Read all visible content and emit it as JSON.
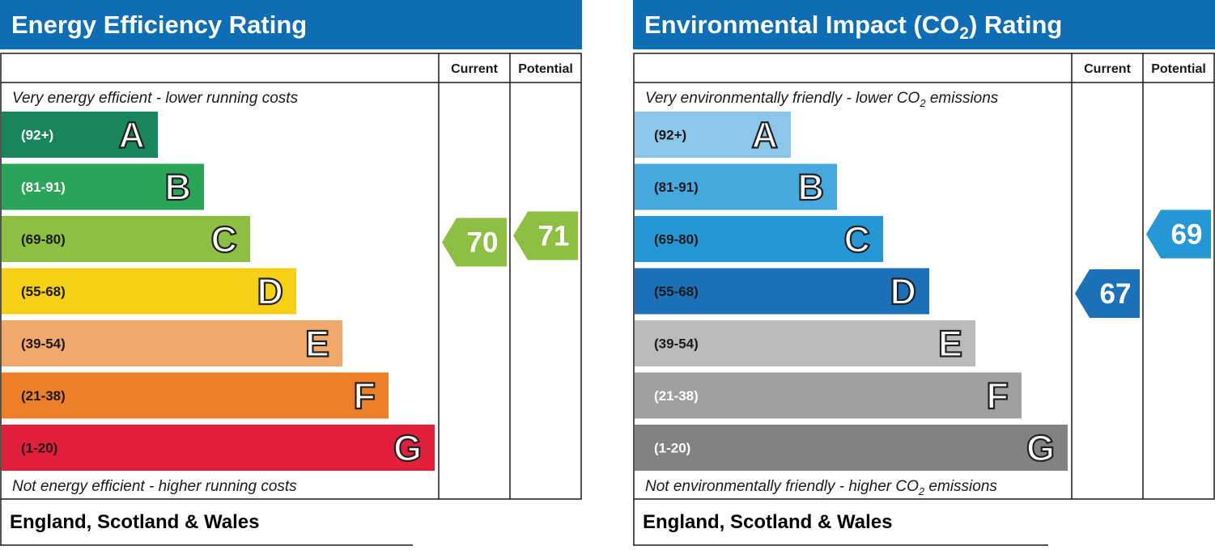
{
  "chart_data": [
    {
      "type": "bar",
      "title": "Energy Efficiency Rating",
      "column_headers": {
        "current": "Current",
        "potential": "Potential"
      },
      "top_note": "Very energy efficient - lower running costs",
      "bottom_note": "Not energy efficient - higher running costs",
      "footer": "England, Scotland & Wales",
      "bands": [
        {
          "letter": "A",
          "range": "(92+)",
          "color": "#17865a",
          "label_color": "#ffffff"
        },
        {
          "letter": "B",
          "range": "(81-91)",
          "color": "#2aa457",
          "label_color": "#ffffff"
        },
        {
          "letter": "C",
          "range": "(69-80)",
          "color": "#8dbf42",
          "label_color": "#1a1a1a"
        },
        {
          "letter": "D",
          "range": "(55-68)",
          "color": "#f6cf17",
          "label_color": "#1a1a1a"
        },
        {
          "letter": "E",
          "range": "(39-54)",
          "color": "#f1a86b",
          "label_color": "#1a1a1a"
        },
        {
          "letter": "F",
          "range": "(21-38)",
          "color": "#ec7f27",
          "label_color": "#1a1a1a"
        },
        {
          "letter": "G",
          "range": "(1-20)",
          "color": "#e21f3a",
          "label_color": "#1a1a1a"
        }
      ],
      "current": {
        "value": 70,
        "band": "C",
        "color": "#8dbf42"
      },
      "potential": {
        "value": 71,
        "band": "C",
        "color": "#8dbf42"
      }
    },
    {
      "type": "bar",
      "title_parts": {
        "before": "Environmental Impact (CO",
        "sub": "2",
        "after": ") Rating"
      },
      "column_headers": {
        "current": "Current",
        "potential": "Potential"
      },
      "top_note_parts": {
        "before": "Very environmentally friendly - lower CO",
        "sub": "2",
        "after": " emissions"
      },
      "bottom_note_parts": {
        "before": "Not environmentally friendly - higher CO",
        "sub": "2",
        "after": " emissions"
      },
      "footer": "England, Scotland & Wales",
      "bands": [
        {
          "letter": "A",
          "range": "(92+)",
          "color": "#8cc7ea",
          "label_color": "#1a1a1a"
        },
        {
          "letter": "B",
          "range": "(81-91)",
          "color": "#47a8dd",
          "label_color": "#1a1a1a"
        },
        {
          "letter": "C",
          "range": "(69-80)",
          "color": "#2597d4",
          "label_color": "#1a1a1a"
        },
        {
          "letter": "D",
          "range": "(55-68)",
          "color": "#1c70b8",
          "label_color": "#1a1a1a"
        },
        {
          "letter": "E",
          "range": "(39-54)",
          "color": "#bbbbbb",
          "label_color": "#1a1a1a"
        },
        {
          "letter": "F",
          "range": "(21-38)",
          "color": "#a0a0a0",
          "label_color": "#ffffff"
        },
        {
          "letter": "G",
          "range": "(1-20)",
          "color": "#828282",
          "label_color": "#ffffff"
        }
      ],
      "current": {
        "value": 67,
        "band": "D",
        "color": "#1c70b8"
      },
      "potential": {
        "value": 69,
        "band": "C",
        "color": "#2597d4"
      }
    }
  ],
  "colors": {
    "header_bg": "#0d6db5",
    "header_text": "#ffffff",
    "border": "#1a1a1a"
  }
}
